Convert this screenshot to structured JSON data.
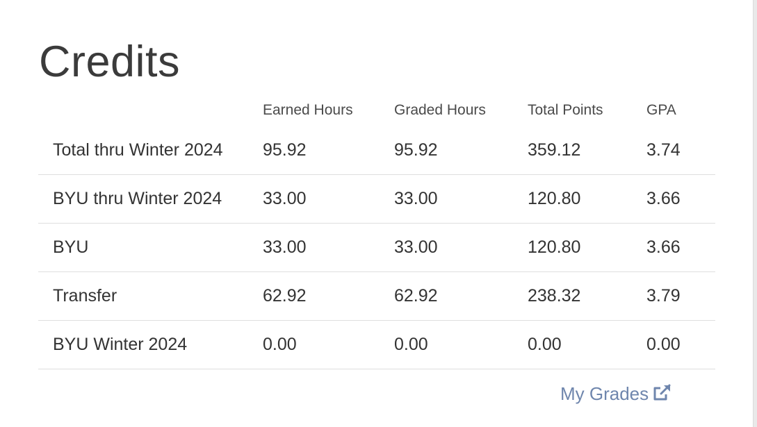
{
  "page": {
    "title": "Credits"
  },
  "table": {
    "headers": [
      "",
      "Earned Hours",
      "Graded Hours",
      "Total Points",
      "GPA"
    ],
    "rows": [
      {
        "label": "Total thru Winter 2024",
        "earned": "95.92",
        "graded": "95.92",
        "points": "359.12",
        "gpa": "3.74"
      },
      {
        "label": "BYU thru Winter 2024",
        "earned": "33.00",
        "graded": "33.00",
        "points": "120.80",
        "gpa": "3.66"
      },
      {
        "label": "BYU",
        "earned": "33.00",
        "graded": "33.00",
        "points": "120.80",
        "gpa": "3.66"
      },
      {
        "label": "Transfer",
        "earned": "62.92",
        "graded": "62.92",
        "points": "238.32",
        "gpa": "3.79"
      },
      {
        "label": "BYU Winter 2024",
        "earned": "0.00",
        "graded": "0.00",
        "points": "0.00",
        "gpa": "0.00"
      }
    ]
  },
  "footer": {
    "link_label": "My Grades",
    "link_icon": "external-link-icon"
  },
  "colors": {
    "title": "#3b3b3b",
    "text": "#333333",
    "link": "#6f86ad",
    "divider": "#dedede"
  }
}
